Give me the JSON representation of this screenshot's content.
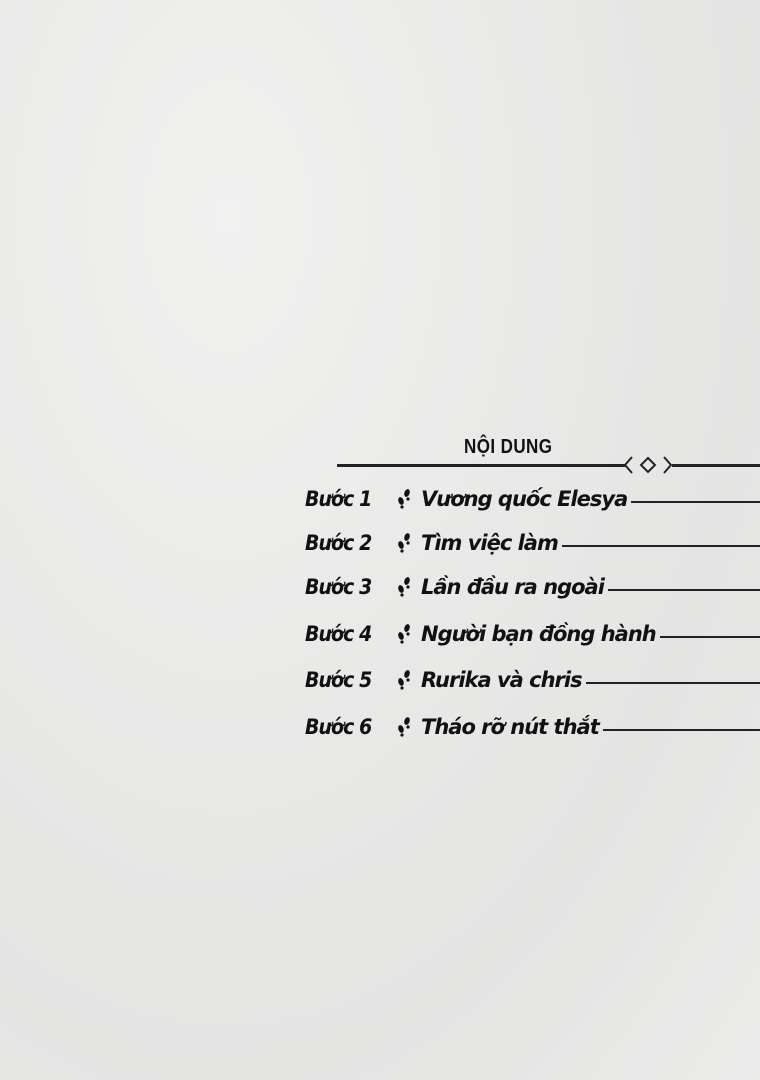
{
  "toc": {
    "heading": "NỘI DUNG",
    "entries": [
      {
        "step": "Bước 1",
        "title": "Vương quốc Elesya"
      },
      {
        "step": "Bước 2",
        "title": "Tìm việc làm"
      },
      {
        "step": "Bước 3",
        "title": "Lần đầu ra ngoài"
      },
      {
        "step": "Bước 4",
        "title": "Người bạn đồng hành"
      },
      {
        "step": "Bước 5",
        "title": "Rurika và chris"
      },
      {
        "step": "Bước 6",
        "title": "Tháo rỡ nút thắt"
      }
    ],
    "separator_icon": "footprints-icon",
    "ornament_icon": "diamond-ornament-icon"
  }
}
